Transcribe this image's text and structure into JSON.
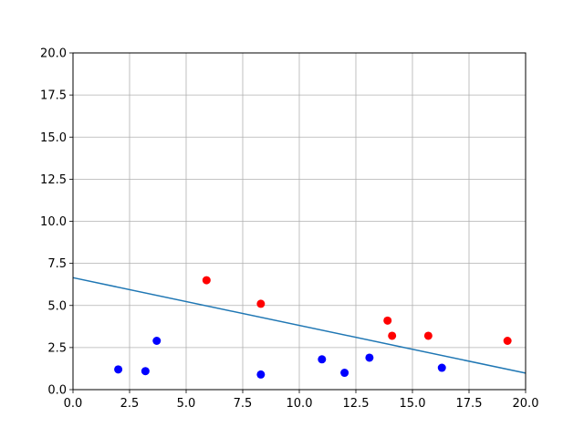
{
  "chart_data": {
    "type": "scatter",
    "title": "",
    "xlabel": "",
    "ylabel": "",
    "xlim": [
      0,
      20
    ],
    "ylim": [
      0,
      20
    ],
    "grid": true,
    "legend": "none",
    "x_ticks": [
      "0.0",
      "2.5",
      "5.0",
      "7.5",
      "10.0",
      "12.5",
      "15.0",
      "17.5",
      "20.0"
    ],
    "y_ticks": [
      "0.0",
      "2.5",
      "5.0",
      "7.5",
      "10.0",
      "12.5",
      "15.0",
      "17.5",
      "20.0"
    ],
    "x_tick_values": [
      0,
      2.5,
      5,
      7.5,
      10,
      12.5,
      15,
      17.5,
      20
    ],
    "y_tick_values": [
      0,
      2.5,
      5,
      7.5,
      10,
      12.5,
      15,
      17.5,
      20
    ],
    "series": [
      {
        "color": "#0000ff",
        "points": [
          {
            "x": 2.0,
            "y": 1.2
          },
          {
            "x": 3.2,
            "y": 1.1
          },
          {
            "x": 3.7,
            "y": 2.9
          },
          {
            "x": 8.3,
            "y": 0.9
          },
          {
            "x": 11.0,
            "y": 1.8
          },
          {
            "x": 12.0,
            "y": 1.0
          },
          {
            "x": 13.1,
            "y": 1.9
          },
          {
            "x": 16.3,
            "y": 1.3
          }
        ]
      },
      {
        "color": "#ff0000",
        "points": [
          {
            "x": 5.9,
            "y": 6.5
          },
          {
            "x": 8.3,
            "y": 5.1
          },
          {
            "x": 13.9,
            "y": 4.1
          },
          {
            "x": 14.1,
            "y": 3.2
          },
          {
            "x": 15.7,
            "y": 3.2
          },
          {
            "x": 19.2,
            "y": 2.9
          }
        ]
      }
    ],
    "lines": [
      {
        "color": "#1f77b4",
        "points": [
          {
            "x": 0,
            "y": 6.65
          },
          {
            "x": 20,
            "y": 0.98
          }
        ]
      }
    ],
    "colors": {
      "grid": "#b0b0b0",
      "axes": "#000000",
      "background": "#ffffff"
    }
  }
}
